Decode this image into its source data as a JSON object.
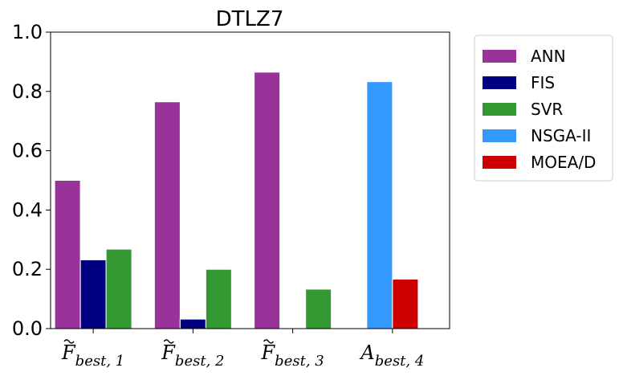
{
  "chart_data": {
    "type": "bar",
    "title": "DTLZ7",
    "xlabel": "",
    "ylabel": "",
    "ylim": [
      0,
      1.0
    ],
    "yticks": [
      "0.0",
      "0.2",
      "0.4",
      "0.6",
      "0.8",
      "1.0"
    ],
    "categories": [
      {
        "base": "F",
        "tilde": true,
        "sub": "best, 1"
      },
      {
        "base": "F",
        "tilde": true,
        "sub": "best, 2"
      },
      {
        "base": "F",
        "tilde": true,
        "sub": "best, 3"
      },
      {
        "base": "A",
        "tilde": false,
        "sub": "best, 4"
      }
    ],
    "series": [
      {
        "name": "ANN",
        "color": "#993399",
        "values": [
          0.5,
          0.765,
          0.865,
          null
        ]
      },
      {
        "name": "FIS",
        "color": "#000080",
        "values": [
          0.232,
          0.032,
          0.0,
          null
        ]
      },
      {
        "name": "SVR",
        "color": "#339933",
        "values": [
          0.268,
          0.2,
          0.133,
          null
        ]
      },
      {
        "name": "NSGA-II",
        "color": "#3399ff",
        "values": [
          null,
          null,
          null,
          0.833
        ]
      },
      {
        "name": "MOEA/D",
        "color": "#cc0000",
        "values": [
          null,
          null,
          null,
          0.167
        ]
      }
    ],
    "grid": false,
    "legend": "outside-right-top"
  }
}
